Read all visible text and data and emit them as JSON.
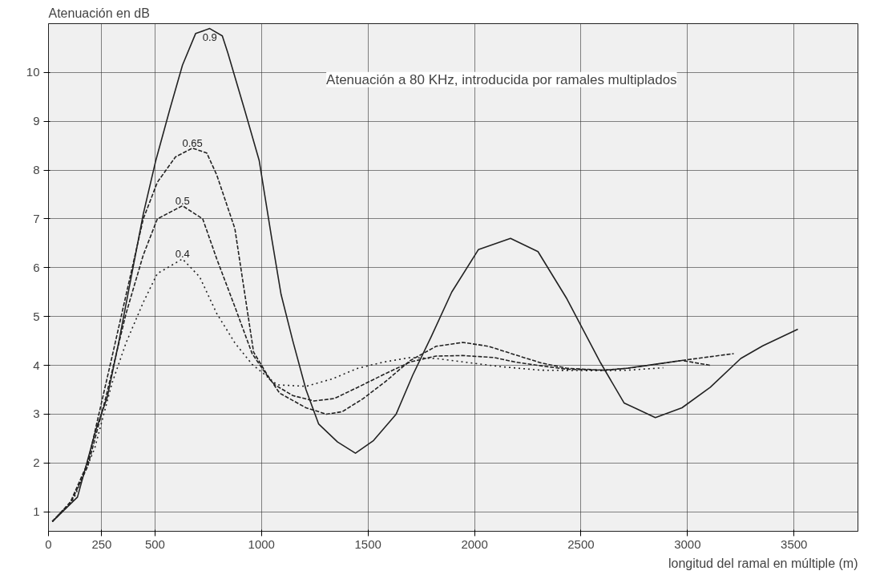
{
  "chart_data": {
    "type": "line",
    "title": "Atenuación a 80 KHz, introducida por ramales multiplados",
    "ylabel": "Atenuación en dB",
    "xlabel": "longitud del ramal en múltiple (m)",
    "xlim": [
      0,
      3800
    ],
    "ylim": [
      0.6,
      11
    ],
    "xticks": [
      0,
      250,
      500,
      1000,
      1500,
      2000,
      2500,
      3000,
      3500
    ],
    "yticks": [
      1,
      2,
      3,
      4,
      5,
      6,
      7,
      8,
      9,
      10
    ],
    "grid": true,
    "marker": "none",
    "series": [
      {
        "name": "0.9",
        "color": "#222222",
        "line_style": "solid",
        "x": [
          18,
          136,
          224,
          276,
          331,
          445,
          504,
          570,
          629,
          691,
          757,
          816,
          842,
          923,
          989,
          1048,
          1092,
          1147,
          1209,
          1268,
          1357,
          1441,
          1526,
          1632,
          1710,
          1798,
          1893,
          2018,
          2169,
          2298,
          2434,
          2592,
          2702,
          2849,
          2974,
          3107,
          3250,
          3353,
          3518
        ],
        "values": [
          0.8,
          1.3,
          2.7,
          3.35,
          4.5,
          7.1,
          8.2,
          9.25,
          10.15,
          10.8,
          10.9,
          10.75,
          10.4,
          9.2,
          8.2,
          6.6,
          5.45,
          4.5,
          3.5,
          2.8,
          2.43,
          2.2,
          2.46,
          3.0,
          3.8,
          4.6,
          5.5,
          6.37,
          6.6,
          6.33,
          5.36,
          4.05,
          3.23,
          2.93,
          3.13,
          3.55,
          4.14,
          4.4,
          4.74
        ]
      },
      {
        "name": "0.65",
        "color": "#222222",
        "line_style": "dashed",
        "x": [
          18,
          103,
          184,
          298,
          445,
          511,
          596,
          676,
          743,
          790,
          875,
          963,
          1025,
          1085,
          1209,
          1305,
          1379,
          1478,
          1577,
          1699,
          1820,
          1945,
          2066,
          2188,
          2312,
          2434,
          2607,
          2717,
          2974,
          3217
        ],
        "values": [
          0.8,
          1.2,
          2.0,
          4.17,
          7.0,
          7.75,
          8.27,
          8.45,
          8.35,
          7.9,
          6.8,
          4.27,
          3.82,
          3.43,
          3.13,
          3.0,
          3.05,
          3.32,
          3.65,
          4.1,
          4.39,
          4.47,
          4.39,
          4.22,
          4.05,
          3.94,
          3.9,
          3.94,
          4.1,
          4.24
        ]
      },
      {
        "name": "0.5",
        "color": "#222222",
        "line_style": "dashed",
        "x": [
          18,
          103,
          184,
          265,
          364,
          445,
          511,
          629,
          724,
          790,
          875,
          956,
          1037,
          1063,
          1147,
          1246,
          1342,
          1452,
          1577,
          1699,
          1820,
          1945,
          2092,
          2188,
          2312,
          2434,
          2607,
          2717,
          2974,
          3107
        ],
        "values": [
          0.8,
          1.17,
          1.93,
          3.27,
          5.06,
          6.26,
          7.0,
          7.27,
          7.0,
          6.18,
          5.2,
          4.24,
          3.72,
          3.6,
          3.38,
          3.27,
          3.32,
          3.55,
          3.82,
          4.07,
          4.19,
          4.2,
          4.16,
          4.07,
          3.99,
          3.92,
          3.9,
          3.94,
          4.1,
          4.0
        ]
      },
      {
        "name": "0.4",
        "color": "#222222",
        "line_style": "dotted",
        "x": [
          18,
          118,
          217,
          298,
          364,
          445,
          511,
          629,
          710,
          790,
          875,
          956,
          1074,
          1209,
          1331,
          1452,
          1577,
          1699,
          1820,
          1945,
          2129,
          2312,
          2607,
          2717,
          2886
        ],
        "values": [
          0.8,
          1.26,
          2.3,
          3.63,
          4.46,
          5.29,
          5.88,
          6.18,
          5.81,
          5.06,
          4.46,
          4.02,
          3.6,
          3.57,
          3.72,
          3.94,
          4.07,
          4.16,
          4.14,
          4.07,
          3.97,
          3.9,
          3.89,
          3.9,
          3.95
        ]
      }
    ]
  }
}
